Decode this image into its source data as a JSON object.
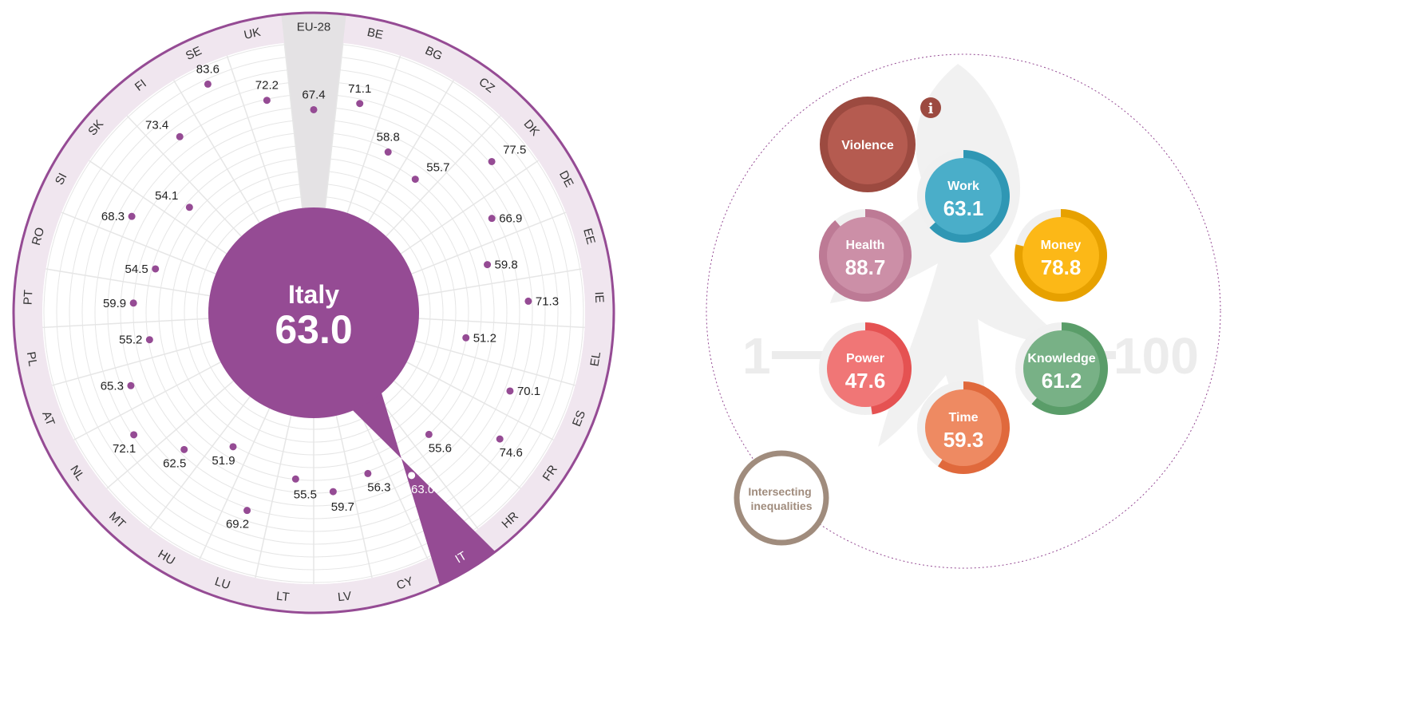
{
  "chart_data": [
    {
      "type": "radial",
      "selected_country": "IT",
      "center": {
        "name": "Italy",
        "value": "63.0"
      },
      "highlight_reference": "EU-28",
      "colors": {
        "accent": "#954b94",
        "ring": "#f0e6ef",
        "reference_band": "#e4e2e4",
        "grid": "#e6e6e6"
      },
      "countries": [
        {
          "code": "EU-28",
          "value": 67.4
        },
        {
          "code": "BE",
          "value": 71.1
        },
        {
          "code": "BG",
          "value": 58.8
        },
        {
          "code": "CZ",
          "value": 55.7
        },
        {
          "code": "DK",
          "value": 77.5
        },
        {
          "code": "DE",
          "value": 66.9
        },
        {
          "code": "EE",
          "value": 59.8
        },
        {
          "code": "IE",
          "value": 71.3
        },
        {
          "code": "EL",
          "value": 51.2
        },
        {
          "code": "ES",
          "value": 70.1
        },
        {
          "code": "FR",
          "value": 74.6
        },
        {
          "code": "HR",
          "value": 55.6
        },
        {
          "code": "IT",
          "value": 63.0
        },
        {
          "code": "CY",
          "value": 56.3
        },
        {
          "code": "LV",
          "value": 59.7
        },
        {
          "code": "LT",
          "value": 55.5
        },
        {
          "code": "LU",
          "value": 69.2
        },
        {
          "code": "HU",
          "value": 51.9
        },
        {
          "code": "MT",
          "value": 62.5
        },
        {
          "code": "NL",
          "value": 72.1
        },
        {
          "code": "AT",
          "value": 65.3
        },
        {
          "code": "PL",
          "value": 55.2
        },
        {
          "code": "PT",
          "value": 59.9
        },
        {
          "code": "RO",
          "value": 54.5
        },
        {
          "code": "SI",
          "value": 68.3
        },
        {
          "code": "SK",
          "value": 54.1
        },
        {
          "code": "FI",
          "value": 73.4
        },
        {
          "code": "SE",
          "value": 83.6
        },
        {
          "code": "UK",
          "value": 72.2
        }
      ]
    },
    {
      "type": "bubble-domains",
      "scale": {
        "min_label": "1",
        "max_label": "100"
      },
      "domains": [
        {
          "name": "Violence",
          "value": null,
          "color": "#b55b50",
          "ring_color": "#9c4a40",
          "info_icon": "i"
        },
        {
          "name": "Work",
          "value": 63.1,
          "color": "#4aaec9",
          "ring_color": "#2f97b4"
        },
        {
          "name": "Money",
          "value": 78.8,
          "color": "#fcb817",
          "ring_color": "#e7a100"
        },
        {
          "name": "Health",
          "value": 88.7,
          "color": "#cc8fa7",
          "ring_color": "#bd7a95"
        },
        {
          "name": "Power",
          "value": 47.6,
          "color": "#f07676",
          "ring_color": "#e55252"
        },
        {
          "name": "Knowledge",
          "value": 61.2,
          "color": "#78b186",
          "ring_color": "#5a9d69"
        },
        {
          "name": "Time",
          "value": 59.3,
          "color": "#ee8a62",
          "ring_color": "#e0693c"
        }
      ],
      "extra": {
        "label_line1": "Intersecting",
        "label_line2": "inequalities",
        "color": "#a08c7d"
      }
    }
  ]
}
